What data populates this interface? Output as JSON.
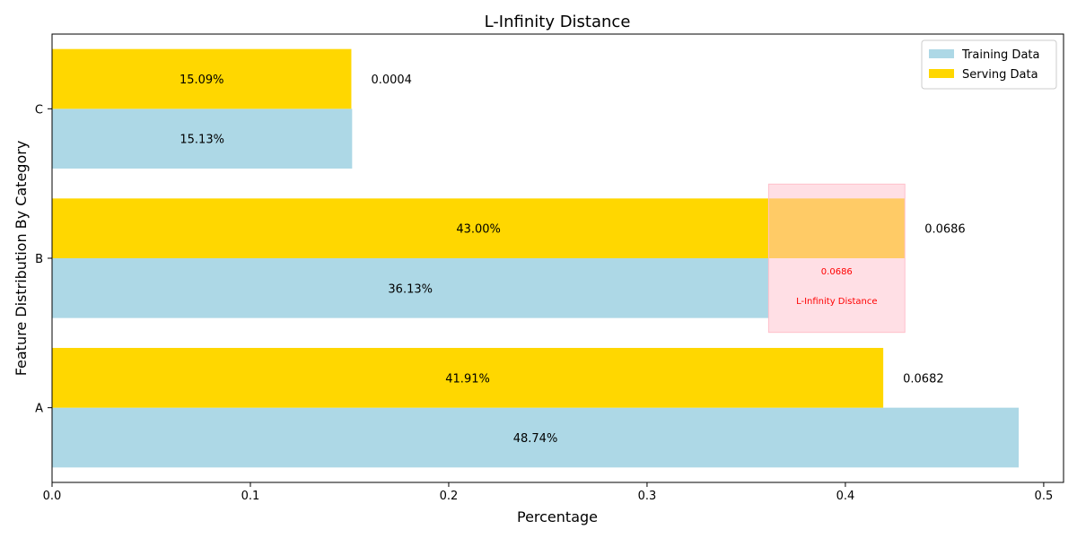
{
  "chart_data": {
    "type": "bar",
    "orientation": "horizontal",
    "title": "L-Infinity Distance",
    "xlabel": "Percentage",
    "ylabel": "Feature Distribution By Category",
    "categories": [
      "A",
      "B",
      "C"
    ],
    "xlim": [
      0,
      0.51
    ],
    "xticks": [
      "0.0",
      "0.1",
      "0.2",
      "0.3",
      "0.4",
      "0.5"
    ],
    "grid": false,
    "legend_position": "top-right",
    "series": [
      {
        "name": "Training Data",
        "color": "#add8e6",
        "values": [
          0.4874,
          0.3613,
          0.1513
        ],
        "labels": [
          "48.74%",
          "36.13%",
          "15.13%"
        ]
      },
      {
        "name": "Serving Data",
        "color": "#ffd700",
        "values": [
          0.4191,
          0.43,
          0.1509
        ],
        "labels": [
          "41.91%",
          "43.00%",
          "15.09%"
        ]
      }
    ],
    "differences": [
      "0.0682",
      "0.0686",
      "0.0004"
    ],
    "annotation": {
      "category": "B",
      "value_text": "0.0686",
      "label": "L-Infinity Distance",
      "color": "#ff0000",
      "fill": "#ffc0cb"
    }
  }
}
